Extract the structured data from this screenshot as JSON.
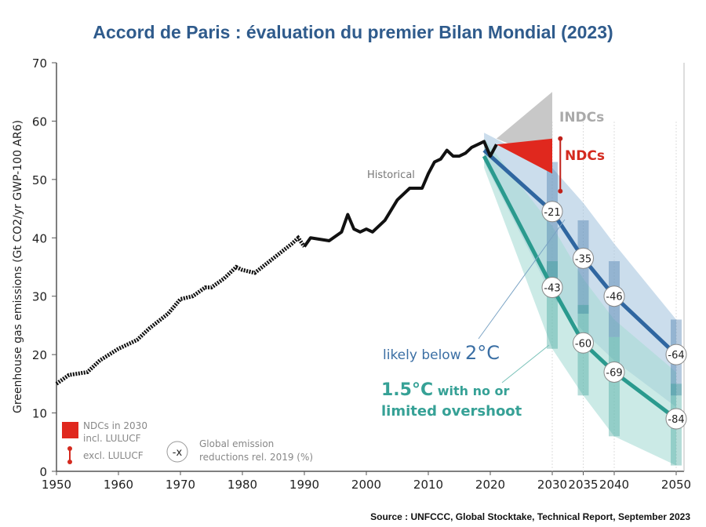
{
  "title": "Accord de Paris : évaluation du premier Bilan Mondial (2023)",
  "source": "Source : UNFCCC, Global Stocktake, Technical Report, September 2023",
  "chart_data": {
    "type": "line",
    "ylabel": "Greenhouse gas emissions (Gt CO2/yr GWP-100 AR6)",
    "xlim": [
      1950,
      2050
    ],
    "ylim": [
      0,
      70
    ],
    "xticks": [
      "1950",
      "1960",
      "1970",
      "1980",
      "1990",
      "2000",
      "2010",
      "2020",
      "2030",
      "2035",
      "2040",
      "2050"
    ],
    "yticks": [
      "0",
      "10",
      "20",
      "30",
      "40",
      "50",
      "60",
      "70"
    ],
    "grid": false,
    "historical": {
      "label": "Historical",
      "color": "#111111",
      "x": [
        1950,
        1952,
        1955,
        1957,
        1960,
        1963,
        1965,
        1968,
        1970,
        1972,
        1974,
        1975,
        1977,
        1979,
        1980,
        1982,
        1985,
        1988,
        1989,
        1990,
        1991,
        1994,
        1996,
        1997,
        1998,
        1999,
        2000,
        2001,
        2003,
        2005,
        2007,
        2009,
        2010,
        2011,
        2012,
        2013,
        2014,
        2015,
        2016,
        2017,
        2018,
        2019,
        2020,
        2021
      ],
      "y": [
        15,
        16.5,
        17,
        19,
        21,
        22.5,
        24.5,
        27,
        29.5,
        30,
        31.5,
        31.5,
        33,
        35,
        34.5,
        34,
        36.5,
        39,
        40,
        38.5,
        40,
        39.5,
        41,
        44,
        41.5,
        41,
        41.5,
        41,
        43,
        46.5,
        48.5,
        48.5,
        51,
        53,
        53.5,
        55,
        54,
        54,
        54.5,
        55.5,
        56,
        56.5,
        54,
        56
      ]
    },
    "indcs": {
      "label": "INDCs",
      "color": "#c8c8c8",
      "x": [
        2021,
        2030
      ],
      "low": [
        57,
        53
      ],
      "high": [
        57,
        65
      ]
    },
    "ndcs": {
      "label": "NDCs",
      "color": "#e0281e",
      "x": [
        2021,
        2030
      ],
      "low": [
        56,
        51
      ],
      "high": [
        56,
        57
      ],
      "excl_lulucf_range_2030": [
        48,
        57
      ]
    },
    "series": [
      {
        "name": "likely below 2°C",
        "color": "#2f66a0",
        "band_color": "#a9c6e0",
        "x": [
          2019,
          2030,
          2035,
          2040,
          2050
        ],
        "y": [
          55,
          44.5,
          36.5,
          30,
          20
        ],
        "band_low": [
          53,
          30,
          24,
          19,
          11
        ],
        "band_high": [
          58,
          52,
          46,
          39,
          26
        ],
        "bars": [
          [
            33,
            53
          ],
          [
            27,
            43
          ],
          [
            23,
            36
          ],
          [
            13,
            26
          ]
        ],
        "reductions": [
          "-21",
          "-35",
          "-46",
          "-64"
        ]
      },
      {
        "name": "1.5°C with no or limited overshoot",
        "color": "#2a9a8e",
        "band_color": "#a8dcd6",
        "x": [
          2019,
          2030,
          2035,
          2040,
          2050
        ],
        "y": [
          54,
          31.5,
          22,
          17,
          9
        ],
        "band_low": [
          52,
          21,
          13,
          6,
          1
        ],
        "band_high": [
          57,
          42,
          33,
          26,
          17
        ],
        "bars": [
          [
            21,
            36
          ],
          [
            13,
            28.5
          ],
          [
            6,
            23
          ],
          [
            1,
            15
          ]
        ],
        "reductions": [
          "-43",
          "-60",
          "-69",
          "-84"
        ]
      }
    ],
    "labels": {
      "historical": "Historical",
      "indcs": "INDCs",
      "ndcs": "NDCs",
      "two_deg_a": "likely below ",
      "two_deg_b": "2°C",
      "one5_a": "1.5°C",
      "one5_b": " with no or",
      "one5_c": "limited overshoot"
    },
    "legend": {
      "ndc_incl_1": "NDCs in 2030",
      "ndc_incl_2": "incl. LULUCF",
      "ndc_excl": "excl. LULUCF",
      "marker": "-x",
      "reduction_1": "Global emission",
      "reduction_2": "reductions rel. 2019 (%)",
      "placement": "bottom-left"
    }
  }
}
